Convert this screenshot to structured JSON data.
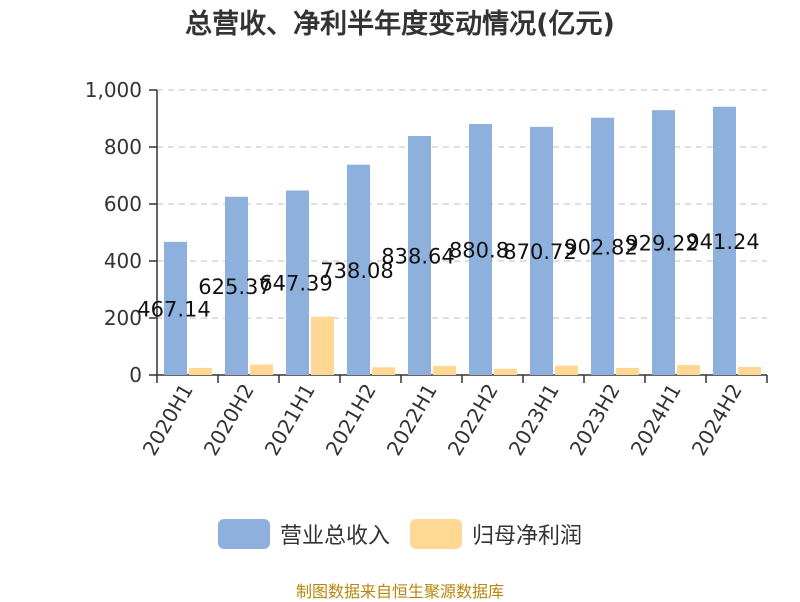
{
  "title": "总营收、净利半年度变动情况(亿元)",
  "source": "制图数据来自恒生聚源数据库",
  "colors": {
    "revenue": "#8eb0dc",
    "profit": "#ffd894",
    "grid": "#cccccc",
    "axis": "#333333"
  },
  "legend": [
    {
      "label": "营业总收入",
      "color": "#8eb0dc"
    },
    {
      "label": "归母净利润",
      "color": "#ffd894"
    }
  ],
  "chart_data": {
    "type": "bar",
    "title": "总营收、净利半年度变动情况(亿元)",
    "categories": [
      "2020H1",
      "2020H2",
      "2021H1",
      "2021H2",
      "2022H1",
      "2022H2",
      "2023H1",
      "2023H2",
      "2024H1",
      "2024H2"
    ],
    "series": [
      {
        "name": "营业总收入",
        "values": [
          467.14,
          625.37,
          647.39,
          738.08,
          838.64,
          880.8,
          870.72,
          902.82,
          929.22,
          941.24
        ],
        "labels": [
          "467.14",
          "625.37",
          "647.39",
          "738.08",
          "838.64",
          "880.8",
          "870.72",
          "902.82",
          "929.22",
          "941.24"
        ]
      },
      {
        "name": "归母净利润",
        "values": [
          25,
          37,
          205,
          27,
          32,
          22,
          33,
          25,
          35,
          28
        ]
      }
    ],
    "ylim": [
      0,
      1000
    ],
    "yticks": [
      0,
      200,
      400,
      600,
      800,
      1000
    ],
    "ytick_labels": [
      "0",
      "200",
      "400",
      "600",
      "800",
      "1,000"
    ],
    "grid": true,
    "legend_position": "bottom"
  }
}
